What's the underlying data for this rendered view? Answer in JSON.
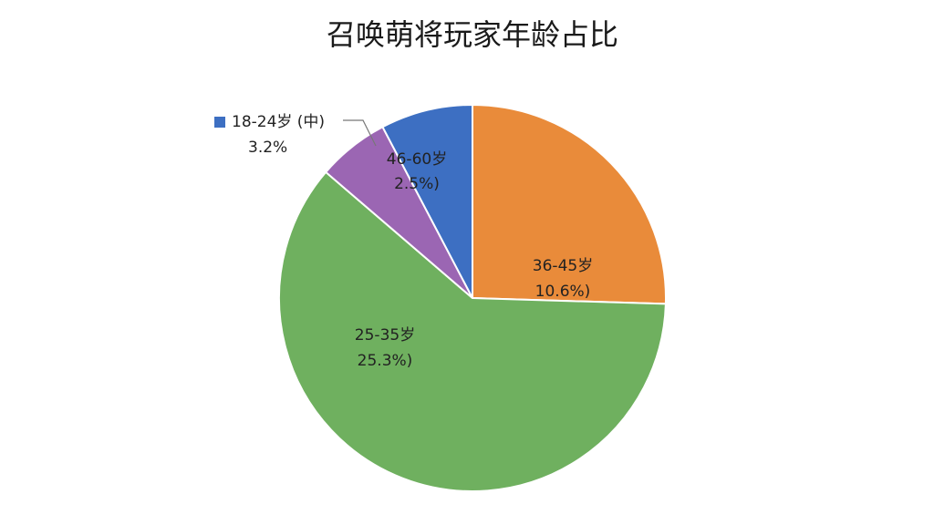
{
  "chart_data": {
    "type": "pie",
    "title": "召唤萌将玩家年龄占比",
    "categories": [
      "36-45岁",
      "25-35岁",
      "46-60岁",
      "18-24岁 (中)"
    ],
    "values": [
      10.6,
      25.3,
      2.5,
      3.2
    ],
    "value_labels": [
      "10.6%)",
      "25.3%)",
      "2.5%)",
      "3.2%"
    ],
    "colors": [
      "#e98b3a",
      "#6fb05f",
      "#9b66b3",
      "#3d6fc2"
    ]
  }
}
